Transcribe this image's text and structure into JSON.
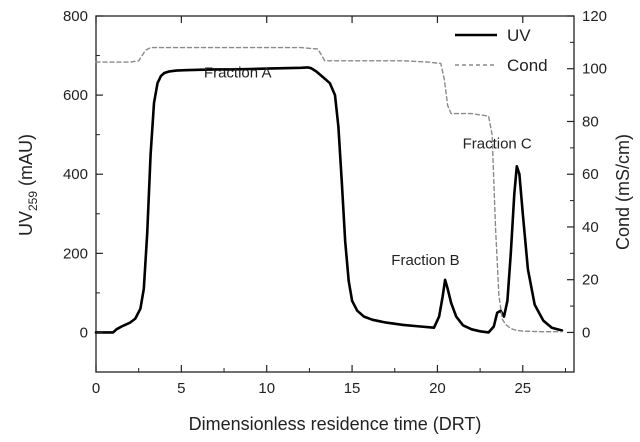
{
  "chart_data": {
    "type": "line",
    "xlabel": "Dimensionless residence time (DRT)",
    "ylabel_left": {
      "main": "UV",
      "sub": "259",
      "unit": " (mAU)"
    },
    "ylabel_right": "Cond (mS/cm)",
    "xlim": [
      0,
      28
    ],
    "ylim_left": [
      -100,
      800
    ],
    "ylim_right": [
      -15,
      120
    ],
    "x_ticks": [
      0,
      5,
      10,
      15,
      20,
      25
    ],
    "y_left_ticks": [
      0,
      200,
      400,
      600,
      800
    ],
    "y_right_ticks": [
      0,
      20,
      40,
      60,
      80,
      100,
      120
    ],
    "grid": false,
    "legend_position": "top-right",
    "series": [
      {
        "name": "UV",
        "axis": "left",
        "style": "solid",
        "color": "#000000",
        "x": [
          0,
          1.0,
          1.2,
          1.5,
          2.0,
          2.3,
          2.6,
          2.8,
          3.0,
          3.2,
          3.4,
          3.6,
          3.8,
          4.0,
          4.3,
          4.7,
          5.2,
          6,
          7,
          8,
          9,
          10,
          11,
          12,
          12.4,
          12.6,
          12.9,
          13.3,
          13.7,
          14.0,
          14.2,
          14.4,
          14.6,
          14.8,
          15.0,
          15.3,
          15.7,
          16.2,
          17,
          18,
          19,
          19.8,
          20.1,
          20.3,
          20.45,
          20.6,
          20.8,
          21.1,
          21.5,
          22,
          22.5,
          23.0,
          23.3,
          23.5,
          23.7,
          23.9,
          24.1,
          24.3,
          24.5,
          24.65,
          24.8,
          25.0,
          25.3,
          25.7,
          26.2,
          26.7,
          27.3
        ],
        "values": [
          0,
          0,
          8,
          15,
          25,
          35,
          60,
          110,
          250,
          450,
          580,
          630,
          648,
          656,
          660,
          662,
          663,
          664,
          665,
          665,
          666,
          667,
          668,
          669,
          670,
          668,
          660,
          645,
          630,
          600,
          520,
          380,
          230,
          130,
          80,
          55,
          40,
          32,
          25,
          19,
          15,
          12,
          40,
          90,
          133,
          110,
          75,
          40,
          18,
          8,
          3,
          0,
          15,
          50,
          55,
          40,
          80,
          200,
          350,
          420,
          400,
          300,
          160,
          70,
          30,
          12,
          5
        ]
      },
      {
        "name": "Cond",
        "axis": "right",
        "style": "dashed",
        "color": "#8a8a8a",
        "x": [
          0,
          2.0,
          2.5,
          2.9,
          3.2,
          5,
          8,
          11,
          12,
          13.0,
          13.4,
          14,
          16,
          18,
          19.5,
          20.2,
          20.4,
          20.6,
          20.8,
          21.2,
          22,
          23.0,
          23.2,
          23.4,
          23.6,
          23.8,
          24.0,
          24.3,
          24.6,
          25,
          26,
          27.3
        ],
        "values": [
          102.5,
          102.5,
          103,
          107,
          108,
          108,
          108,
          108,
          108,
          107.5,
          103,
          103,
          103,
          103,
          102.5,
          102,
          96,
          86,
          83,
          83,
          83,
          82,
          75,
          40,
          14,
          5,
          3,
          1.5,
          0.8,
          0.5,
          0.3,
          0.3
        ]
      }
    ],
    "annotations": [
      {
        "text": "Fraction A",
        "x": 8.3,
        "y": 645
      },
      {
        "text": "Fraction B",
        "x": 19.3,
        "y": 170
      },
      {
        "text": "Fraction C",
        "x": 23.5,
        "y": 465
      }
    ]
  }
}
